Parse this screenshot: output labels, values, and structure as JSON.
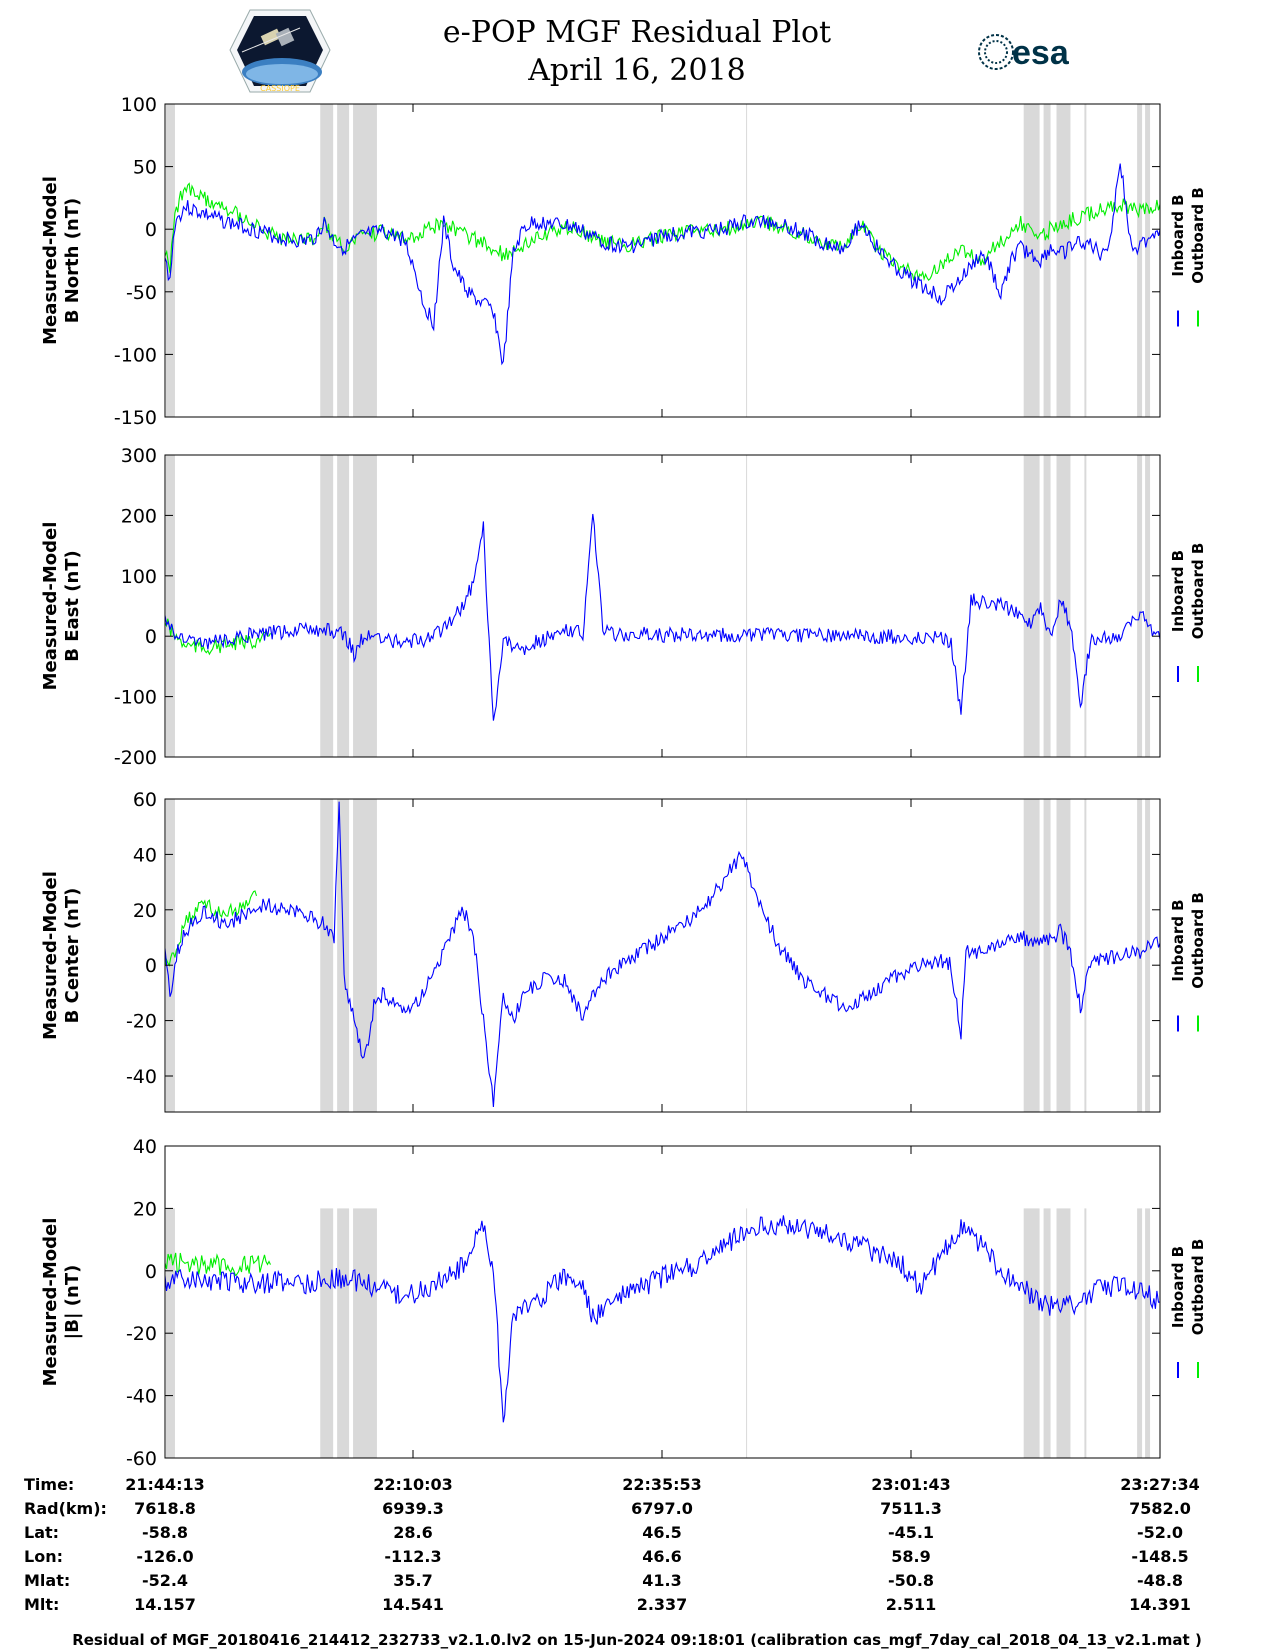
{
  "header": {
    "title": "e-POP MGF Residual Plot",
    "date": "April 16, 2018",
    "logo_left": "CASSIOPE",
    "logo_right": "esa",
    "logo_left_icon": "cassiope-mission-badge-icon",
    "logo_right_icon": "esa-logo-icon"
  },
  "colors": {
    "inboard": "#0000ff",
    "outboard": "#00ee00",
    "gap_shading": "#d9d9d9"
  },
  "chart_data": [
    {
      "type": "line",
      "ylabel_line1": "Measured-Model",
      "ylabel_line2": "B North (nT)",
      "ylim": [
        -150,
        100
      ],
      "yticks": [
        "100",
        "50",
        "0",
        "-50",
        "-100",
        "-150"
      ],
      "x_range": [
        0,
        100
      ],
      "legend": [
        "Inboard B",
        "Outboard B"
      ],
      "legend_position": "right",
      "series": [
        {
          "name": "Inboard B",
          "color": "#0000ff",
          "x": [
            0,
            0.5,
            1,
            2,
            3,
            4,
            5,
            6,
            8,
            10,
            12,
            14,
            15,
            16,
            17,
            18,
            20,
            22,
            24,
            25,
            26,
            27,
            28,
            29,
            30,
            31,
            32,
            33,
            34,
            35,
            36,
            37,
            38,
            39,
            40,
            41,
            42,
            43,
            44,
            45,
            46,
            48,
            50,
            52,
            54,
            56,
            58,
            60,
            62,
            64,
            66,
            68,
            70,
            72,
            74,
            76,
            78,
            80,
            82,
            83,
            84,
            85,
            86,
            87,
            88,
            89,
            90,
            91,
            92,
            93,
            94,
            95,
            96,
            97,
            98,
            99,
            100
          ],
          "y": [
            -25,
            -40,
            5,
            18,
            15,
            12,
            9,
            6,
            2,
            -3,
            -8,
            -10,
            -7,
            5,
            -10,
            -15,
            -5,
            -2,
            -8,
            -30,
            -60,
            -75,
            5,
            -30,
            -45,
            -55,
            -60,
            -65,
            -110,
            -20,
            0,
            5,
            5,
            4,
            3,
            2,
            -2,
            -6,
            -10,
            -12,
            -14,
            -12,
            -5,
            -3,
            -2,
            0,
            5,
            6,
            5,
            -3,
            -10,
            -15,
            5,
            -20,
            -35,
            -45,
            -55,
            -40,
            -20,
            -30,
            -55,
            -25,
            -15,
            -20,
            -25,
            -15,
            -20,
            -15,
            -10,
            -12,
            -20,
            -8,
            55,
            -10,
            -15,
            -5,
            0
          ]
        },
        {
          "name": "Outboard B",
          "color": "#00ee00",
          "x": [
            0,
            0.5,
            1,
            2,
            3,
            4,
            5,
            6,
            8,
            10,
            12,
            14,
            15,
            16,
            17,
            18,
            20,
            22,
            24,
            28,
            34,
            40,
            46,
            50,
            56,
            60,
            64,
            68,
            70,
            72,
            76,
            80,
            82,
            84,
            86,
            88,
            90,
            92,
            94,
            96,
            98,
            100
          ],
          "y": [
            -20,
            -30,
            15,
            32,
            28,
            24,
            20,
            18,
            10,
            -3,
            -8,
            -10,
            -7,
            5,
            -10,
            -15,
            -5,
            -2,
            -8,
            5,
            -20,
            3,
            -14,
            -5,
            0,
            6,
            -3,
            -15,
            5,
            -20,
            -40,
            -15,
            -25,
            -10,
            5,
            -5,
            5,
            10,
            15,
            20,
            15,
            20
          ]
        }
      ],
      "gap_bands": [
        [
          0.1,
          1.0
        ],
        [
          15.6,
          16.9
        ],
        [
          17.3,
          18.5
        ],
        [
          18.9,
          21.3
        ],
        [
          86.3,
          87.9
        ],
        [
          88.3,
          89.0
        ],
        [
          89.6,
          91.0
        ],
        [
          92.4,
          92.6
        ],
        [
          97.7,
          98.2
        ],
        [
          98.5,
          99.0
        ],
        [
          58.4,
          58.5
        ]
      ]
    },
    {
      "type": "line",
      "ylabel_line1": "Measured-Model",
      "ylabel_line2": "B East (nT)",
      "ylim": [
        -200,
        300
      ],
      "yticks": [
        "300",
        "200",
        "100",
        "0",
        "-100",
        "-200"
      ],
      "x_range": [
        0,
        100
      ],
      "legend": [
        "Inboard B",
        "Outboard B"
      ],
      "legend_position": "right",
      "series": [
        {
          "name": "Inboard B",
          "color": "#0000ff",
          "x": [
            0,
            0.5,
            1,
            2,
            4,
            6,
            8,
            10,
            12,
            14,
            16,
            18,
            19,
            20,
            22,
            24,
            26,
            28,
            30,
            31,
            32,
            33,
            34,
            35,
            36,
            37,
            38,
            39,
            40,
            42,
            43,
            44,
            45,
            46,
            48,
            50,
            60,
            70,
            76,
            78,
            79,
            80,
            81,
            82,
            84,
            86,
            87,
            88,
            89,
            90,
            91,
            92,
            93,
            94,
            95,
            96,
            98,
            100
          ],
          "y": [
            30,
            20,
            5,
            -5,
            -10,
            -5,
            0,
            5,
            8,
            10,
            10,
            5,
            -30,
            0,
            -5,
            -10,
            -5,
            10,
            50,
            90,
            180,
            -150,
            -10,
            -15,
            -20,
            -10,
            -5,
            0,
            15,
            5,
            200,
            10,
            5,
            3,
            3,
            2,
            3,
            0,
            -2,
            0,
            -10,
            -130,
            60,
            55,
            50,
            40,
            20,
            45,
            5,
            60,
            20,
            -120,
            -10,
            -5,
            0,
            0,
            40,
            -5
          ]
        },
        {
          "name": "Outboard B",
          "color": "#00ee00",
          "x": [
            0,
            1,
            2,
            4,
            6,
            8,
            10,
            10.6
          ],
          "y": [
            25,
            0,
            -15,
            -20,
            -15,
            -10,
            -5,
            5
          ]
        }
      ],
      "gap_bands": [
        [
          0.1,
          1.0
        ],
        [
          15.6,
          16.9
        ],
        [
          17.3,
          18.5
        ],
        [
          18.9,
          21.3
        ],
        [
          86.3,
          87.9
        ],
        [
          88.3,
          89.0
        ],
        [
          89.6,
          91.0
        ],
        [
          92.4,
          92.6
        ],
        [
          97.7,
          98.2
        ],
        [
          98.5,
          99.0
        ],
        [
          58.4,
          58.5
        ]
      ]
    },
    {
      "type": "line",
      "ylabel_line1": "Measured-Model",
      "ylabel_line2": "B Center (nT)",
      "ylim": [
        -53,
        60
      ],
      "yticks": [
        "60",
        "40",
        "20",
        "0",
        "-20",
        "-40"
      ],
      "x_range": [
        0,
        100
      ],
      "legend": [
        "Inboard B",
        "Outboard B"
      ],
      "legend_position": "right",
      "series": [
        {
          "name": "Inboard B",
          "color": "#0000ff",
          "x": [
            0,
            0.5,
            1,
            2,
            4,
            6,
            8,
            10,
            12,
            14,
            16,
            17,
            17.5,
            18,
            19,
            20,
            21,
            22,
            24,
            26,
            28,
            30,
            31,
            32,
            33,
            34,
            35,
            36,
            38,
            40,
            42,
            44,
            46,
            48,
            50,
            52,
            54,
            56,
            58,
            60,
            62,
            64,
            66,
            68,
            70,
            72,
            74,
            76,
            78,
            79,
            80,
            80.5,
            81,
            82,
            84,
            86,
            88,
            90,
            91,
            92,
            93,
            94,
            96,
            98,
            100
          ],
          "y": [
            5,
            -12,
            2,
            12,
            20,
            15,
            18,
            22,
            20,
            18,
            15,
            10,
            60,
            -5,
            -20,
            -35,
            -15,
            -10,
            -18,
            -10,
            5,
            20,
            10,
            -20,
            -50,
            -10,
            -20,
            -10,
            -5,
            -5,
            -18,
            -5,
            0,
            5,
            10,
            15,
            20,
            30,
            40,
            20,
            5,
            -5,
            -10,
            -15,
            -12,
            -8,
            -3,
            0,
            2,
            0,
            -25,
            5,
            4,
            5,
            8,
            10,
            8,
            12,
            5,
            -15,
            0,
            2,
            3,
            5,
            8
          ]
        },
        {
          "name": "Outboard B",
          "color": "#00ee00",
          "x": [
            0,
            1,
            2,
            4,
            6,
            8,
            9.2
          ],
          "y": [
            0,
            5,
            15,
            22,
            18,
            22,
            25
          ]
        }
      ],
      "gap_bands": [
        [
          0.1,
          1.0
        ],
        [
          15.6,
          16.9
        ],
        [
          17.3,
          18.5
        ],
        [
          18.9,
          21.3
        ],
        [
          86.3,
          87.9
        ],
        [
          88.3,
          89.0
        ],
        [
          89.6,
          91.0
        ],
        [
          92.4,
          92.6
        ],
        [
          97.7,
          98.2
        ],
        [
          98.5,
          99.0
        ],
        [
          58.4,
          58.5
        ]
      ]
    },
    {
      "type": "line",
      "ylabel_line1": "Measured-Model",
      "ylabel_line2": "|B| (nT)",
      "ylim": [
        -60,
        40
      ],
      "yticks": [
        "40",
        "20",
        "0",
        "-20",
        "-40",
        "-60"
      ],
      "x_range": [
        0,
        100
      ],
      "legend": [
        "Inboard B",
        "Outboard B"
      ],
      "legend_position": "right",
      "series": [
        {
          "name": "Inboard B",
          "color": "#0000ff",
          "x": [
            0,
            2,
            4,
            6,
            8,
            10,
            12,
            14,
            16,
            18,
            20,
            22,
            24,
            26,
            28,
            30,
            32,
            33,
            34,
            35,
            36,
            38,
            40,
            42,
            43,
            44,
            46,
            48,
            50,
            52,
            54,
            56,
            58,
            60,
            62,
            64,
            66,
            68,
            70,
            72,
            74,
            76,
            78,
            80,
            82,
            84,
            86,
            88,
            90,
            92,
            94,
            96,
            98,
            100
          ],
          "y": [
            -3,
            -3,
            -3,
            -4,
            -4,
            -4,
            -3,
            -4,
            -3,
            -2,
            -4,
            -6,
            -8,
            -6,
            -3,
            2,
            15,
            0,
            -48,
            -15,
            -12,
            -8,
            -2,
            -5,
            -15,
            -12,
            -8,
            -5,
            -2,
            0,
            3,
            8,
            12,
            15,
            15,
            14,
            12,
            10,
            8,
            5,
            2,
            -5,
            5,
            15,
            8,
            0,
            -5,
            -10,
            -12,
            -10,
            -5,
            -5,
            -6,
            -10
          ]
        },
        {
          "name": "Outboard B",
          "color": "#00ee00",
          "x": [
            0,
            2,
            4,
            6,
            8,
            10,
            10.6
          ],
          "y": [
            3,
            3,
            2,
            2,
            2,
            2,
            2
          ]
        }
      ],
      "gap_bands": [
        [
          0.1,
          1.0
        ],
        [
          15.6,
          16.9
        ],
        [
          17.3,
          18.5
        ],
        [
          18.9,
          21.3
        ],
        [
          86.3,
          87.9
        ],
        [
          88.3,
          89.0
        ],
        [
          89.6,
          91.0
        ],
        [
          92.4,
          92.6
        ],
        [
          97.7,
          98.2
        ],
        [
          98.5,
          99.0
        ],
        [
          58.4,
          58.5
        ]
      ]
    }
  ],
  "table": {
    "labels": [
      "Time:",
      "Rad(km):",
      "Lat:",
      "Lon:",
      "Mlat:",
      "Mlt:"
    ],
    "columns": [
      [
        "21:44:13",
        "7618.8",
        "-58.8",
        "-126.0",
        "-52.4",
        "14.157"
      ],
      [
        "22:10:03",
        "6939.3",
        "28.6",
        "-112.3",
        "35.7",
        "14.541"
      ],
      [
        "22:35:53",
        "6797.0",
        "46.5",
        "46.6",
        "41.3",
        "2.337"
      ],
      [
        "23:01:43",
        "7511.3",
        "-45.1",
        "58.9",
        "-50.8",
        "2.511"
      ],
      [
        "23:27:34",
        "7582.0",
        "-52.0",
        "-148.5",
        "-48.8",
        "14.391"
      ]
    ]
  },
  "footer": "Residual of MGF_20180416_214412_232733_v2.1.0.lv2 on 15-Jun-2024 09:18:01 (calibration cas_mgf_7day_cal_2018_04_13_v2.1.mat )"
}
